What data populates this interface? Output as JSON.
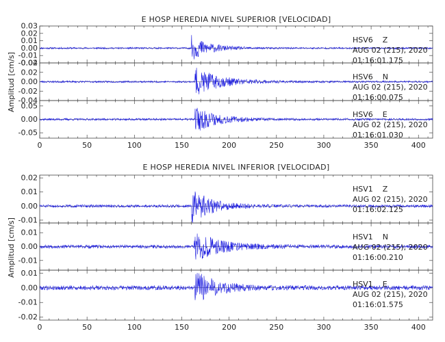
{
  "chart_data": [
    {
      "type": "line",
      "title": "E HOSP HEREDIA NIVEL SUPERIOR [VELOCIDAD]",
      "ylabel": "Amplitud [cm/s]",
      "xlim": [
        0,
        415
      ],
      "xticks": [
        "0",
        "50",
        "100",
        "150",
        "200",
        "250",
        "300",
        "350",
        "400"
      ],
      "trace_color": "#1a1adf",
      "traces": [
        {
          "station": "HSV6",
          "component": "Z",
          "date": "AUG 02 (215), 2020",
          "time": "01:16:01.175",
          "ylim": [
            -0.02,
            0.03
          ],
          "yticks": [
            "0.03",
            "0.02",
            "0.01",
            "0.00",
            "-0.01",
            "-0.02"
          ],
          "onset": 160,
          "noise": 0.0012,
          "peak": 0.017,
          "decay": 18,
          "seed": 11
        },
        {
          "station": "HSV6",
          "component": "N",
          "date": "AUG 02 (215), 2020",
          "time": "01:16:00.075",
          "ylim": [
            -0.04,
            0.04
          ],
          "yticks": [
            "0.04",
            "0.02",
            "0.00",
            "-0.02",
            "-0.04"
          ],
          "onset": 164,
          "noise": 0.002,
          "peak": 0.03,
          "decay": 26,
          "seed": 23
        },
        {
          "station": "HSV6",
          "component": "E",
          "date": "AUG 02 (215), 2020",
          "time": "01:16:01.030",
          "ylim": [
            -0.07,
            0.07
          ],
          "yticks": [
            "0.05",
            "0.00",
            "-0.05"
          ],
          "onset": 164,
          "noise": 0.004,
          "peak": 0.05,
          "decay": 22,
          "seed": 37
        }
      ]
    },
    {
      "type": "line",
      "title": "E HOSP HEREDIA NIVEL INFERIOR [VELOCIDAD]",
      "ylabel": "Amplitud [cm/s]",
      "xlim": [
        0,
        415
      ],
      "xticks": [
        "0",
        "50",
        "100",
        "150",
        "200",
        "250",
        "300",
        "350",
        "400"
      ],
      "trace_color": "#1a1adf",
      "traces": [
        {
          "station": "HSV1",
          "component": "Z",
          "date": "AUG 02 (215), 2020",
          "time": "01:16:02.125",
          "ylim": [
            -0.012,
            0.022
          ],
          "yticks": [
            "0.02",
            "0.01",
            "0.00",
            "-0.01"
          ],
          "onset": 160,
          "noise": 0.001,
          "peak": 0.012,
          "decay": 22,
          "seed": 51
        },
        {
          "station": "HSV1",
          "component": "N",
          "date": "AUG 02 (215), 2020",
          "time": "01:16:00.210",
          "ylim": [
            -0.017,
            0.017
          ],
          "yticks": [
            "0.01",
            "0.00",
            "-0.01"
          ],
          "onset": 163,
          "noise": 0.0012,
          "peak": 0.011,
          "decay": 26,
          "seed": 67
        },
        {
          "station": "HSV1",
          "component": "E",
          "date": "AUG 02 (215), 2020",
          "time": "01:16:01.575",
          "ylim": [
            -0.022,
            0.012
          ],
          "yticks": [
            "0.01",
            "0.00",
            "-0.01",
            "-0.02"
          ],
          "onset": 163,
          "noise": 0.0015,
          "peak": 0.012,
          "decay": 22,
          "seed": 79
        }
      ]
    }
  ]
}
